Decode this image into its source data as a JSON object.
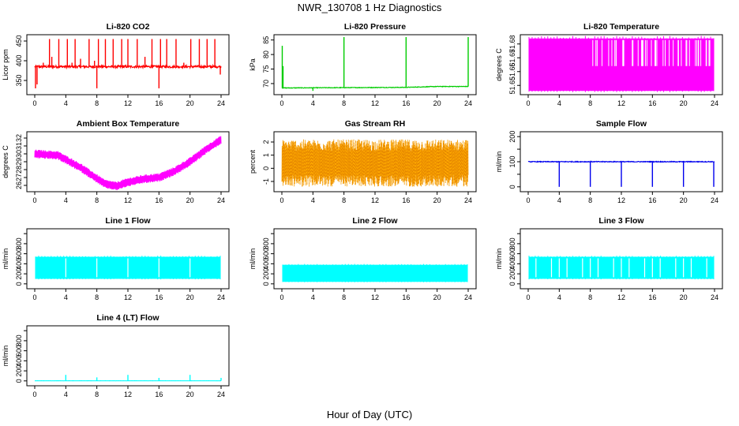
{
  "title": "NWR_130708  1 Hz Diagnostics",
  "xlabel": "Hour of Day (UTC)",
  "chart_data": [
    {
      "type": "line",
      "title": "Li-820 CO2",
      "ylabel": "Licor ppm",
      "color": "#ff0000",
      "xlim": [
        0,
        24
      ],
      "ylim": [
        320,
        460
      ],
      "xticks": [
        0,
        4,
        8,
        12,
        16,
        20,
        24
      ],
      "yticks": [
        350,
        400,
        450
      ],
      "series": [
        {
          "baseline": 385,
          "noise": 3,
          "trend": [],
          "spikes": [
            [
              0.1,
              330
            ],
            [
              0.3,
              340
            ],
            [
              1.1,
              395
            ],
            [
              1.9,
              455
            ],
            [
              2.2,
              410
            ],
            [
              3.1,
              455
            ],
            [
              4.2,
              455
            ],
            [
              4.8,
              395
            ],
            [
              5.2,
              455
            ],
            [
              5.9,
              405
            ],
            [
              7.0,
              455
            ],
            [
              7.7,
              400
            ],
            [
              8.0,
              330
            ],
            [
              8.2,
              455
            ],
            [
              9.1,
              455
            ],
            [
              10.1,
              455
            ],
            [
              11.2,
              455
            ],
            [
              12.0,
              455
            ],
            [
              13.2,
              455
            ],
            [
              14.2,
              410
            ],
            [
              15.1,
              455
            ],
            [
              16.0,
              330
            ],
            [
              16.2,
              455
            ],
            [
              17.0,
              455
            ],
            [
              18.2,
              455
            ],
            [
              19.2,
              395
            ],
            [
              20.1,
              455
            ],
            [
              21.2,
              455
            ],
            [
              22.2,
              455
            ],
            [
              23.2,
              455
            ],
            [
              23.9,
              365
            ]
          ]
        }
      ]
    },
    {
      "type": "line",
      "title": "Li-820 Pressure",
      "ylabel": "kPa",
      "color": "#00cc00",
      "xlim": [
        0,
        24
      ],
      "ylim": [
        67,
        86
      ],
      "xticks": [
        0,
        4,
        8,
        12,
        16,
        20,
        24
      ],
      "yticks": [
        70,
        75,
        80,
        85
      ],
      "series": [
        {
          "baseline": 68.6,
          "noise": 0.1,
          "trend": [
            [
              0,
              68.5
            ],
            [
              16,
              68.7
            ],
            [
              20,
              69.0
            ],
            [
              24,
              69.0
            ]
          ],
          "spikes": [
            [
              0.05,
              83
            ],
            [
              0.15,
              76
            ],
            [
              8.0,
              86
            ],
            [
              16.0,
              86
            ],
            [
              24.0,
              86
            ],
            [
              4.0,
              67.5
            ]
          ]
        }
      ]
    },
    {
      "type": "band",
      "title": "Li-820 Temperature",
      "ylabel": "degrees C",
      "color": "#ff00ff",
      "xlim": [
        0,
        24
      ],
      "ylim": [
        51.645,
        51.685
      ],
      "xticks": [
        0,
        4,
        8,
        12,
        16,
        20,
        24
      ],
      "yticks": [
        51.65,
        51.66,
        51.67,
        51.68
      ],
      "ytick_labels": [
        "51.65",
        "51.66",
        "51.67",
        "51.68"
      ],
      "series": [
        {
          "low": 51.646,
          "high": 51.684,
          "gap_level": 51.664,
          "gaps_start": 7.5
        }
      ]
    },
    {
      "type": "band",
      "title": "Ambient Box Temperature",
      "ylabel": "degrees C",
      "color": "#ff00ff",
      "xlim": [
        0,
        24
      ],
      "ylim": [
        25.5,
        32.5
      ],
      "xticks": [
        0,
        4,
        8,
        12,
        16,
        20,
        24
      ],
      "yticks": [
        26,
        27,
        28,
        29,
        30,
        31,
        32
      ],
      "series": [
        {
          "curve": [
            [
              0,
              30.0
            ],
            [
              3,
              29.8
            ],
            [
              6,
              28.2
            ],
            [
              9,
              26.2
            ],
            [
              10.5,
              25.9
            ],
            [
              12,
              26.4
            ],
            [
              14,
              26.8
            ],
            [
              16,
              27.0
            ],
            [
              18,
              27.8
            ],
            [
              20,
              29.0
            ],
            [
              22,
              30.5
            ],
            [
              24,
              31.8
            ]
          ],
          "half_width": 0.55
        }
      ]
    },
    {
      "type": "band",
      "title": "Gas Stream RH",
      "ylabel": "percent",
      "color": "#ffaa00",
      "xlim": [
        0,
        24
      ],
      "ylim": [
        -1.6,
        2.6
      ],
      "xticks": [
        0,
        4,
        8,
        12,
        16,
        20,
        24
      ],
      "yticks": [
        -1,
        0,
        1,
        2
      ],
      "series": [
        {
          "low": -1.3,
          "high": 2.2,
          "center": 0.4
        }
      ]
    },
    {
      "type": "line",
      "title": "Sample Flow",
      "ylabel": "ml/min",
      "color": "#0000ee",
      "xlim": [
        0,
        24
      ],
      "ylim": [
        -10,
        210
      ],
      "xticks": [
        0,
        4,
        8,
        12,
        16,
        20,
        24
      ],
      "yticks": [
        0,
        50,
        100,
        150,
        200
      ],
      "ytick_labels": [
        "0",
        "",
        "100",
        "",
        "200"
      ],
      "series": [
        {
          "baseline": 100,
          "noise": 1.5,
          "trend": [],
          "spikes": [
            [
              4.0,
              0
            ],
            [
              8.0,
              0
            ],
            [
              12.0,
              0
            ],
            [
              16.0,
              0
            ],
            [
              20.0,
              0
            ],
            [
              23.9,
              0
            ]
          ]
        }
      ]
    },
    {
      "type": "band",
      "title": "Line 1 Flow",
      "ylabel": "ml/min",
      "color": "#00ffff",
      "xlim": [
        0,
        24
      ],
      "ylim": [
        -50,
        1050
      ],
      "xticks": [
        0,
        4,
        8,
        12,
        16,
        20,
        24
      ],
      "yticks": [
        0,
        200,
        400,
        600,
        800,
        1000
      ],
      "ytick_labels": [
        "0",
        "200",
        "400",
        "600",
        "800",
        ""
      ],
      "series": [
        {
          "low": 100,
          "high": 540,
          "gaps": [
            4.0,
            8.0,
            12.0,
            16.0,
            20.0
          ]
        }
      ]
    },
    {
      "type": "band",
      "title": "Line 2 Flow",
      "ylabel": "ml/min",
      "color": "#00ffff",
      "xlim": [
        0,
        24
      ],
      "ylim": [
        -50,
        1050
      ],
      "xticks": [
        0,
        4,
        8,
        12,
        16,
        20,
        24
      ],
      "yticks": [
        0,
        200,
        400,
        600,
        800,
        1000
      ],
      "ytick_labels": [
        "0",
        "200",
        "400",
        "600",
        "800",
        ""
      ],
      "series": [
        {
          "low": 40,
          "high": 380,
          "gaps": []
        }
      ]
    },
    {
      "type": "band",
      "title": "Line 3 Flow",
      "ylabel": "ml/min",
      "color": "#00ffff",
      "xlim": [
        0,
        24
      ],
      "ylim": [
        -50,
        1050
      ],
      "xticks": [
        0,
        4,
        8,
        12,
        16,
        20,
        24
      ],
      "yticks": [
        0,
        200,
        400,
        600,
        800,
        1000
      ],
      "ytick_labels": [
        "0",
        "200",
        "400",
        "600",
        "800",
        ""
      ],
      "series": [
        {
          "low": 100,
          "high": 540,
          "gaps": [
            1.0,
            3.0,
            4.0,
            5.0,
            7.0,
            8.0,
            9.0,
            11.0,
            12.0,
            13.0,
            15.0,
            16.0,
            17.0,
            19.0,
            20.0,
            21.0,
            23.0
          ]
        }
      ]
    },
    {
      "type": "line",
      "title": "Line 4 (LT) Flow",
      "ylabel": "ml/min",
      "color": "#00ffff",
      "xlim": [
        0,
        24
      ],
      "ylim": [
        -50,
        1050
      ],
      "xticks": [
        0,
        4,
        8,
        12,
        16,
        20,
        24
      ],
      "yticks": [
        0,
        200,
        400,
        600,
        800,
        1000
      ],
      "ytick_labels": [
        "0",
        "200",
        "400",
        "600",
        "800",
        ""
      ],
      "series": [
        {
          "baseline": 2,
          "noise": 1,
          "trend": [],
          "spikes": [
            [
              4.0,
              120
            ],
            [
              8.0,
              70
            ],
            [
              12.0,
              120
            ],
            [
              16.0,
              60
            ],
            [
              20.0,
              120
            ],
            [
              24.0,
              60
            ]
          ]
        }
      ]
    }
  ]
}
